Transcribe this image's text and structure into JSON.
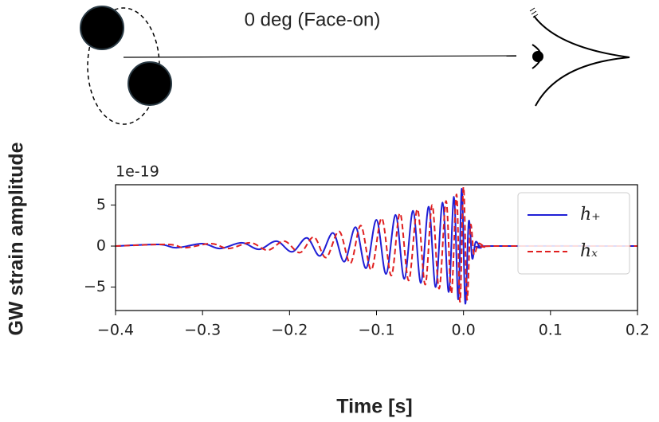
{
  "header": {
    "title": "0 deg (Face-on)"
  },
  "chart_data": {
    "type": "line",
    "ylabel": "GW strain amplitude",
    "xlabel": "Time [s]",
    "offset_label": "1e-19",
    "xlim": [
      -0.4,
      0.2
    ],
    "ylim": [
      -7.86,
      7.48
    ],
    "xticks": [
      {
        "value": -0.4,
        "label": "−0.4"
      },
      {
        "value": -0.3,
        "label": "−0.3"
      },
      {
        "value": -0.2,
        "label": "−0.2"
      },
      {
        "value": -0.1,
        "label": "−0.1"
      },
      {
        "value": 0.0,
        "label": "0.0"
      },
      0.1,
      0.2
    ],
    "yticks": [
      {
        "value": -5,
        "label": "−5"
      },
      0,
      5
    ],
    "legend": "upper right",
    "series": [
      {
        "name": "h₊",
        "color": "#1f1fd6",
        "dash": "solid",
        "x": [
          -0.4,
          -0.35,
          -0.33,
          -0.3,
          -0.28,
          -0.255,
          -0.235,
          -0.215,
          -0.197,
          -0.18,
          -0.165,
          -0.15,
          -0.137,
          -0.124,
          -0.112,
          -0.1,
          -0.089,
          -0.078,
          -0.068,
          -0.058,
          -0.049,
          -0.04,
          -0.032,
          -0.024,
          -0.017,
          -0.011,
          -0.006,
          -0.002,
          0.002,
          0.006,
          0.01,
          0.014,
          0.02,
          0.03,
          0.2
        ],
        "values": [
          0,
          0.2,
          -0.2,
          0.3,
          -0.3,
          0.4,
          -0.4,
          0.6,
          -0.7,
          1.0,
          -1.2,
          1.6,
          -1.9,
          2.3,
          -2.7,
          3.2,
          -3.4,
          3.8,
          -4.0,
          4.3,
          -4.5,
          4.8,
          -5.0,
          5.3,
          -5.6,
          6.0,
          -6.5,
          7.0,
          -7.0,
          3.0,
          -1.5,
          0.5,
          -0.2,
          0,
          0
        ]
      },
      {
        "name": "hₓ",
        "color": "#e02020",
        "dash": "dashed",
        "x": [
          -0.4,
          -0.34,
          -0.32,
          -0.29,
          -0.27,
          -0.245,
          -0.225,
          -0.206,
          -0.188,
          -0.172,
          -0.158,
          -0.143,
          -0.13,
          -0.118,
          -0.106,
          -0.094,
          -0.083,
          -0.073,
          -0.063,
          -0.053,
          -0.044,
          -0.036,
          -0.028,
          -0.02,
          -0.014,
          -0.008,
          -0.004,
          0.0,
          0.004,
          0.008,
          0.012,
          0.017,
          0.025,
          0.035,
          0.2
        ],
        "values": [
          0,
          0.2,
          -0.2,
          0.3,
          -0.3,
          0.4,
          -0.5,
          0.6,
          -0.8,
          1.1,
          -1.4,
          1.8,
          -2.1,
          2.5,
          -2.9,
          3.4,
          -3.6,
          4.0,
          -4.2,
          4.5,
          -4.7,
          5.0,
          -5.2,
          5.5,
          -5.8,
          6.3,
          -6.8,
          7.2,
          -6.5,
          2.5,
          -1.0,
          0.3,
          -0.1,
          0,
          0
        ]
      }
    ]
  }
}
